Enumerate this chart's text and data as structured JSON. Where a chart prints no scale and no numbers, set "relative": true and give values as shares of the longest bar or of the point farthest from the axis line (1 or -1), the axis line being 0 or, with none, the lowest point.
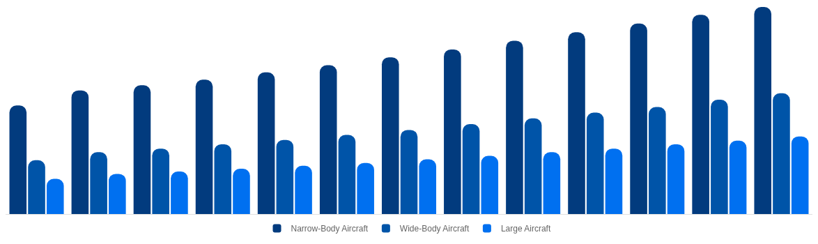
{
  "chart_data": {
    "type": "bar",
    "relative": true,
    "legend": "bottom",
    "categories": [
      null,
      null,
      null,
      null,
      null,
      null,
      null,
      null,
      null,
      null,
      null,
      null,
      null
    ],
    "series": [
      {
        "name": "Narrow-Body Aircraft",
        "color": "#023b7e",
        "values": [
          0.524,
          0.597,
          0.622,
          0.649,
          0.684,
          0.719,
          0.757,
          0.795,
          0.837,
          0.878,
          0.92,
          0.962,
          1
        ]
      },
      {
        "name": "Wide-Body Aircraft",
        "color": "#0054a8",
        "values": [
          0.26,
          0.299,
          0.316,
          0.337,
          0.358,
          0.382,
          0.406,
          0.434,
          0.462,
          0.49,
          0.517,
          0.552,
          0.583
        ]
      },
      {
        "name": "Large Aircraft",
        "color": "#0070f0",
        "values": [
          0.17,
          0.194,
          0.205,
          0.219,
          0.233,
          0.247,
          0.264,
          0.281,
          0.299,
          0.316,
          0.337,
          0.354,
          0.375
        ]
      }
    ]
  }
}
